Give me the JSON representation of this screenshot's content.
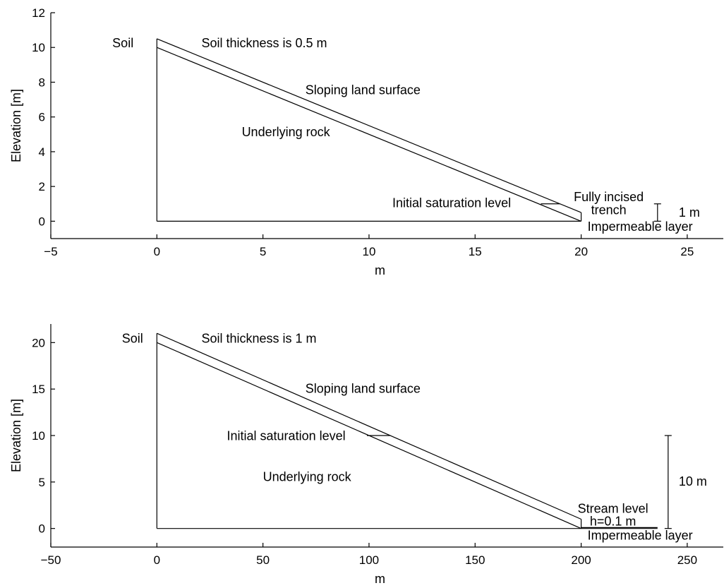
{
  "chart_data": [
    {
      "type": "line",
      "xlabel": "m",
      "ylabel": "Elevation [m]",
      "xlim": [
        -5,
        26.7
      ],
      "ylim": [
        -1,
        12
      ],
      "xticks": [
        -5,
        0,
        5,
        10,
        15,
        20,
        25
      ],
      "yticks": [
        0,
        2,
        4,
        6,
        8,
        10,
        12
      ],
      "grid": false,
      "lines": [
        {
          "name": "rock-surface",
          "x": [
            0,
            20
          ],
          "y": [
            10,
            0
          ]
        },
        {
          "name": "land-surface",
          "x": [
            0,
            20
          ],
          "y": [
            10.5,
            0.5
          ]
        },
        {
          "name": "left-boundary",
          "x": [
            0,
            0
          ],
          "y": [
            0,
            10.5
          ]
        },
        {
          "name": "base",
          "x": [
            0,
            20
          ],
          "y": [
            0,
            0
          ]
        },
        {
          "name": "trench-wall",
          "x": [
            20,
            20
          ],
          "y": [
            0,
            0.5
          ]
        },
        {
          "name": "saturation-mark",
          "x": [
            18.1,
            19
          ],
          "y": [
            1,
            1
          ]
        }
      ],
      "dimension": {
        "x": 23.6,
        "y0": 0,
        "y1": 1,
        "label": "1 m"
      },
      "annotations": [
        {
          "text": "Soil",
          "x": -2.1,
          "y": 10,
          "anchor": "start"
        },
        {
          "text": "Soil thickness is 0.5 m",
          "x": 2.1,
          "y": 10,
          "anchor": "start"
        },
        {
          "text": "Sloping land surface",
          "x": 7.0,
          "y": 7.3,
          "anchor": "start"
        },
        {
          "text": "Underlying rock",
          "x": 4.0,
          "y": 4.9,
          "anchor": "start"
        },
        {
          "text": "Initial saturation level",
          "x": 11.1,
          "y": 0.8,
          "anchor": "start"
        },
        {
          "text": "Fully incised",
          "x": 21.3,
          "y": 1.15,
          "anchor": "middle"
        },
        {
          "text": "trench",
          "x": 21.3,
          "y": 0.4,
          "anchor": "middle"
        },
        {
          "text": "1 m",
          "x": 24.6,
          "y": 0.25,
          "anchor": "start"
        },
        {
          "text": "Impermeable layer",
          "x": 20.3,
          "y": -0.55,
          "anchor": "start"
        }
      ]
    },
    {
      "type": "line",
      "xlabel": "m",
      "ylabel": "Elevation [m]",
      "xlim": [
        -50,
        267
      ],
      "ylim": [
        -2,
        22
      ],
      "xticks": [
        -50,
        0,
        50,
        100,
        150,
        200,
        250
      ],
      "yticks": [
        0,
        5,
        10,
        15,
        20
      ],
      "grid": false,
      "lines": [
        {
          "name": "rock-surface",
          "x": [
            0,
            200
          ],
          "y": [
            20,
            0
          ]
        },
        {
          "name": "land-surface",
          "x": [
            0,
            200
          ],
          "y": [
            21,
            1
          ]
        },
        {
          "name": "left-boundary",
          "x": [
            0,
            0
          ],
          "y": [
            0,
            21
          ]
        },
        {
          "name": "base",
          "x": [
            0,
            200
          ],
          "y": [
            0,
            0
          ]
        },
        {
          "name": "stream-wall",
          "x": [
            200,
            200
          ],
          "y": [
            0,
            1
          ]
        },
        {
          "name": "saturation-mark",
          "x": [
            99,
            110
          ],
          "y": [
            10,
            10
          ]
        },
        {
          "name": "stream-surface",
          "x": [
            200,
            236
          ],
          "y": [
            0.1,
            0.1
          ]
        },
        {
          "name": "stream-bed",
          "x": [
            200,
            236
          ],
          "y": [
            0,
            0
          ]
        }
      ],
      "dimension": {
        "x": 241,
        "y0": 0,
        "y1": 10,
        "label": "10 m"
      },
      "annotations": [
        {
          "text": "Soil",
          "x": -16.5,
          "y": 20,
          "anchor": "start"
        },
        {
          "text": "Soil thickness is 1 m",
          "x": 21,
          "y": 20,
          "anchor": "start"
        },
        {
          "text": "Sloping land surface",
          "x": 70,
          "y": 14.6,
          "anchor": "start"
        },
        {
          "text": "Initial saturation level",
          "x": 33,
          "y": 9.5,
          "anchor": "start"
        },
        {
          "text": "Underlying rock",
          "x": 50,
          "y": 5.1,
          "anchor": "start"
        },
        {
          "text": "10 m",
          "x": 246,
          "y": 4.6,
          "anchor": "start"
        },
        {
          "text": "Stream level",
          "x": 215,
          "y": 1.7,
          "anchor": "middle"
        },
        {
          "text": "h=0.1 m",
          "x": 215,
          "y": 0.3,
          "anchor": "middle"
        },
        {
          "text": "Impermeable layer",
          "x": 203,
          "y": -1.2,
          "anchor": "start"
        }
      ]
    }
  ]
}
